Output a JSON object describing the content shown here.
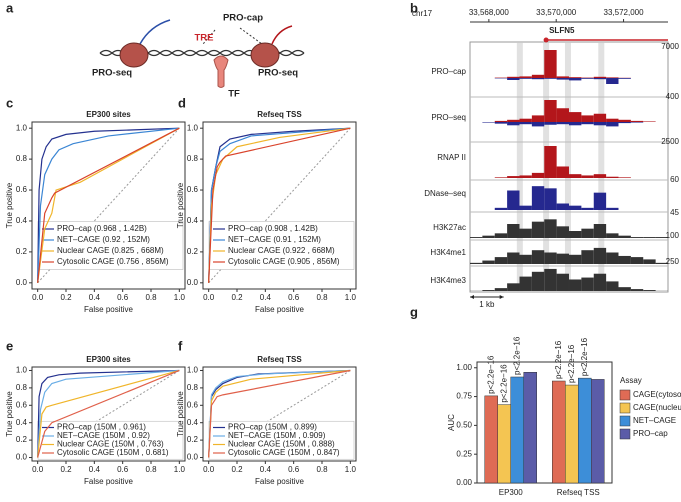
{
  "panel_labels": [
    "a",
    "b",
    "c",
    "d",
    "e",
    "f",
    "g"
  ],
  "diagram": {
    "pro_cap": "PRO-cap",
    "tre": "TRE",
    "tf": "TF",
    "pro_seq_left": "PRO-seq",
    "pro_seq_right": "PRO-seq"
  },
  "genome_browser": {
    "chrom": "chr17",
    "xlim": [
      33567440,
      33573320
    ],
    "xticks": [
      {
        "value": 33568000,
        "label": "33,568,000"
      },
      {
        "value": 33570000,
        "label": "33,570,000"
      },
      {
        "value": 33572000,
        "label": "33,572,000"
      }
    ],
    "gene": {
      "name": "SLFN5",
      "start": 33569700
    },
    "highlights": [
      33568920,
      33569700,
      33570350,
      33571340
    ],
    "x": [
      33567624,
      33567991,
      33568359,
      33568726,
      33569094,
      33569461,
      33569829,
      33570196,
      33570564,
      33570931,
      33571299,
      33571666,
      33572034,
      33572401,
      33572769,
      33573136
    ],
    "tracks": [
      {
        "name": "PRO–cap",
        "max": 7000,
        "color": "#b3161b",
        "minus_color": "#25288f",
        "values": [
          0,
          0,
          100,
          300,
          400,
          800,
          7000,
          400,
          200,
          100,
          300,
          150,
          50,
          0,
          0,
          0
        ],
        "minus_values": [
          0,
          0,
          -100,
          -500,
          -200,
          -300,
          -200,
          -400,
          -600,
          -200,
          -300,
          -1500,
          -200,
          0,
          0,
          0
        ]
      },
      {
        "name": "PRO–seq",
        "max": 400,
        "color": "#b3161b",
        "minus_color": "#25288f",
        "values": [
          0,
          0,
          20,
          40,
          60,
          120,
          400,
          250,
          180,
          120,
          150,
          60,
          40,
          20,
          10,
          0
        ],
        "minus_values": [
          0,
          -10,
          -30,
          -60,
          -40,
          -80,
          -50,
          -40,
          -60,
          -40,
          -60,
          -80,
          -20,
          -10,
          0,
          0
        ]
      },
      {
        "name": "RNAP II",
        "max": 2500,
        "color": "#b3161b",
        "values": [
          0,
          0,
          50,
          150,
          200,
          400,
          2500,
          900,
          300,
          200,
          300,
          100,
          50,
          0,
          0,
          0
        ]
      },
      {
        "name": "DNase–seq",
        "max": 60,
        "color": "#25288f",
        "values": [
          0,
          0,
          5,
          45,
          10,
          55,
          50,
          15,
          10,
          5,
          40,
          5,
          0,
          0,
          0,
          0
        ]
      },
      {
        "name": "H3K27ac",
        "max": 45,
        "color": "#333333",
        "values": [
          2,
          5,
          10,
          30,
          20,
          35,
          40,
          25,
          15,
          20,
          30,
          10,
          5,
          2,
          2,
          2
        ]
      },
      {
        "name": "H3K4me1",
        "max": 100,
        "color": "#333333",
        "values": [
          5,
          15,
          30,
          50,
          40,
          60,
          50,
          45,
          40,
          60,
          70,
          50,
          35,
          30,
          20,
          5
        ]
      },
      {
        "name": "H3K4me3",
        "max": 250,
        "color": "#333333",
        "values": [
          2,
          10,
          30,
          80,
          150,
          200,
          230,
          180,
          120,
          140,
          180,
          100,
          40,
          20,
          10,
          2
        ]
      }
    ],
    "scale_bar": {
      "label": "1 kb",
      "length": 1000
    }
  },
  "chart_data": [
    {
      "type": "line",
      "title": "EP300 sites",
      "xlabel": "False positive",
      "ylabel": "True positive",
      "xlim": [
        -0.04,
        1.04
      ],
      "ylim": [
        -0.04,
        1.04
      ],
      "xticks": [
        {
          "value": 0,
          "label": "0.0"
        },
        0.2,
        0.4,
        0.6,
        0.8,
        {
          "value": 1,
          "label": "1.0"
        }
      ],
      "yticks": [
        {
          "value": 0,
          "label": "0.0"
        },
        0.2,
        0.4,
        0.6,
        0.8,
        {
          "value": 1,
          "label": "1.0"
        }
      ],
      "series": [
        {
          "name": "PRO–cap (0.968 , 1.42B)",
          "color": "#24318f",
          "x": [
            0,
            0.01,
            0.03,
            0.06,
            0.1,
            0.2,
            0.4,
            0.7,
            1
          ],
          "values": [
            0,
            0.6,
            0.8,
            0.88,
            0.93,
            0.96,
            0.98,
            0.99,
            1
          ]
        },
        {
          "name": "NET–CAGE (0.92 , 152M)",
          "color": "#3b86d4",
          "x": [
            0,
            0.02,
            0.05,
            0.1,
            0.15,
            0.25,
            0.5,
            1
          ],
          "values": [
            0,
            0.5,
            0.7,
            0.8,
            0.86,
            0.9,
            0.95,
            1
          ]
        },
        {
          "name": "Nuclear CAGE (0.825 , 668M)",
          "color": "#f0b52a",
          "x": [
            0,
            0.05,
            0.1,
            0.13,
            0.3,
            0.5,
            1
          ],
          "values": [
            0,
            0.35,
            0.45,
            0.6,
            0.65,
            0.75,
            1
          ]
        },
        {
          "name": "Cytosolic CAGE (0.756 , 856M)",
          "color": "#d9432b",
          "x": [
            0,
            0.05,
            0.1,
            0.12,
            1
          ],
          "values": [
            0,
            0.45,
            0.55,
            0.58,
            1
          ]
        }
      ]
    },
    {
      "type": "line",
      "title": "Refseq TSS",
      "xlabel": "False positive",
      "ylabel": "True positive",
      "xlim": [
        -0.04,
        1.04
      ],
      "ylim": [
        -0.04,
        1.04
      ],
      "xticks": [
        {
          "value": 0,
          "label": "0.0"
        },
        0.2,
        0.4,
        0.6,
        0.8,
        {
          "value": 1,
          "label": "1.0"
        }
      ],
      "yticks": [
        {
          "value": 0,
          "label": "0.0"
        },
        0.2,
        0.4,
        0.6,
        0.8,
        {
          "value": 1,
          "label": "1.0"
        }
      ],
      "series": [
        {
          "name": "PRO–cap (0.908 , 1.42B)",
          "color": "#24318f",
          "x": [
            0,
            0.02,
            0.05,
            0.08,
            0.15,
            0.3,
            0.6,
            1
          ],
          "values": [
            0,
            0.6,
            0.75,
            0.88,
            0.93,
            0.96,
            0.98,
            1
          ]
        },
        {
          "name": "NET–CAGE (0.91 , 152M)",
          "color": "#3b86d4",
          "x": [
            0,
            0.02,
            0.05,
            0.08,
            0.15,
            0.3,
            1
          ],
          "values": [
            0,
            0.6,
            0.75,
            0.85,
            0.9,
            0.95,
            1
          ]
        },
        {
          "name": "Nuclear CAGE (0.922 , 668M)",
          "color": "#f0b52a",
          "x": [
            0,
            0.02,
            0.05,
            0.1,
            0.2,
            0.5,
            1
          ],
          "values": [
            0,
            0.5,
            0.7,
            0.8,
            0.88,
            0.94,
            1
          ]
        },
        {
          "name": "Cytosolic CAGE (0.905 , 856M)",
          "color": "#d9432b",
          "x": [
            0,
            0.03,
            0.06,
            0.08,
            0.12,
            1
          ],
          "values": [
            0,
            0.6,
            0.75,
            0.78,
            0.82,
            1
          ]
        }
      ]
    },
    {
      "type": "line",
      "title": "EP300 sites",
      "xlabel": "False positive",
      "ylabel": "True positive",
      "xlim": [
        -0.04,
        1.04
      ],
      "ylim": [
        -0.04,
        1.04
      ],
      "xticks": [
        {
          "value": 0,
          "label": "0.0"
        },
        0.2,
        0.4,
        0.6,
        0.8,
        {
          "value": 1,
          "label": "1.0"
        }
      ],
      "yticks": [
        {
          "value": 0,
          "label": "0.0"
        },
        0.2,
        0.4,
        0.6,
        0.8,
        {
          "value": 1,
          "label": "1.0"
        }
      ],
      "series": [
        {
          "name": "PRO–cap (150M , 0.961)",
          "color": "#24318f",
          "x": [
            0,
            0.01,
            0.03,
            0.07,
            0.15,
            0.3,
            1
          ],
          "values": [
            0,
            0.7,
            0.85,
            0.92,
            0.95,
            0.97,
            1
          ]
        },
        {
          "name": "NET–CAGE (150M , 0.92)",
          "color": "#6aaee6",
          "x": [
            0,
            0.02,
            0.05,
            0.1,
            0.2,
            1
          ],
          "values": [
            0,
            0.55,
            0.75,
            0.85,
            0.9,
            1
          ]
        },
        {
          "name": "Nuclear CAGE (150M , 0.763)",
          "color": "#f0b52a",
          "x": [
            0,
            0.03,
            0.06,
            0.1,
            1
          ],
          "values": [
            0,
            0.5,
            0.58,
            0.6,
            1
          ]
        },
        {
          "name": "Cytosolic CAGE (150M , 0.681)",
          "color": "#e0604a",
          "x": [
            0,
            0.05,
            0.1,
            1
          ],
          "values": [
            0,
            0.3,
            0.4,
            1
          ]
        }
      ]
    },
    {
      "type": "line",
      "title": "Refseq TSS",
      "xlabel": "False positive",
      "ylabel": "True positive",
      "xlim": [
        -0.04,
        1.04
      ],
      "ylim": [
        -0.04,
        1.04
      ],
      "xticks": [
        {
          "value": 0,
          "label": "0.0"
        },
        0.2,
        0.4,
        0.6,
        0.8,
        {
          "value": 1,
          "label": "1.0"
        }
      ],
      "yticks": [
        {
          "value": 0,
          "label": "0.0"
        },
        0.2,
        0.4,
        0.6,
        0.8,
        {
          "value": 1,
          "label": "1.0"
        }
      ],
      "series": [
        {
          "name": "PRO–cap (150M , 0.899)",
          "color": "#24318f",
          "x": [
            0,
            0.02,
            0.05,
            0.1,
            0.2,
            0.35,
            1
          ],
          "values": [
            0,
            0.7,
            0.78,
            0.85,
            0.92,
            0.96,
            1
          ]
        },
        {
          "name": "NET–CAGE (150M , 0.909)",
          "color": "#6aaee6",
          "x": [
            0,
            0.02,
            0.05,
            0.1,
            0.2,
            0.4,
            1
          ],
          "values": [
            0,
            0.72,
            0.8,
            0.87,
            0.93,
            0.96,
            1
          ]
        },
        {
          "name": "Nuclear CAGE (150M , 0.888)",
          "color": "#f0b52a",
          "x": [
            0,
            0.02,
            0.05,
            0.1,
            0.3,
            1
          ],
          "values": [
            0,
            0.65,
            0.75,
            0.82,
            0.9,
            1
          ]
        },
        {
          "name": "Cytosolic CAGE (150M , 0.847)",
          "color": "#e0604a",
          "x": [
            0,
            0.02,
            0.06,
            0.1,
            1
          ],
          "values": [
            0,
            0.6,
            0.7,
            0.72,
            1
          ]
        }
      ]
    },
    {
      "type": "bar",
      "ylabel": "AUC",
      "categories": [
        "EP300",
        "Refseq TSS"
      ],
      "ylim": [
        0,
        1.05
      ],
      "yticks": [
        {
          "value": 0,
          "label": "0.00"
        },
        {
          "value": 0.25,
          "label": "0.25"
        },
        {
          "value": 0.5,
          "label": "0.50"
        },
        {
          "value": 0.75,
          "label": "0.75"
        },
        {
          "value": 1,
          "label": "1.00"
        }
      ],
      "legend_title": "Assay",
      "series": [
        {
          "name": "CAGE(cytosol)",
          "color": "#df6b55",
          "values": [
            0.756,
            0.885
          ],
          "annotations": [
            "p<2.2e−16",
            "p<2.2e−16"
          ]
        },
        {
          "name": "CAGE(nucleus)",
          "color": "#f4c552",
          "values": [
            0.68,
            0.85
          ],
          "annotations": [
            "p<2.2e−16",
            "p<2.2e−16"
          ]
        },
        {
          "name": "NET–CAGE",
          "color": "#3d8ed8",
          "values": [
            0.92,
            0.91
          ],
          "annotations": [
            "p<2.2e−16",
            "p<2.2e−16"
          ]
        },
        {
          "name": "PRO–cap",
          "color": "#5b5ca8",
          "values": [
            0.961,
            0.899
          ]
        }
      ]
    }
  ]
}
